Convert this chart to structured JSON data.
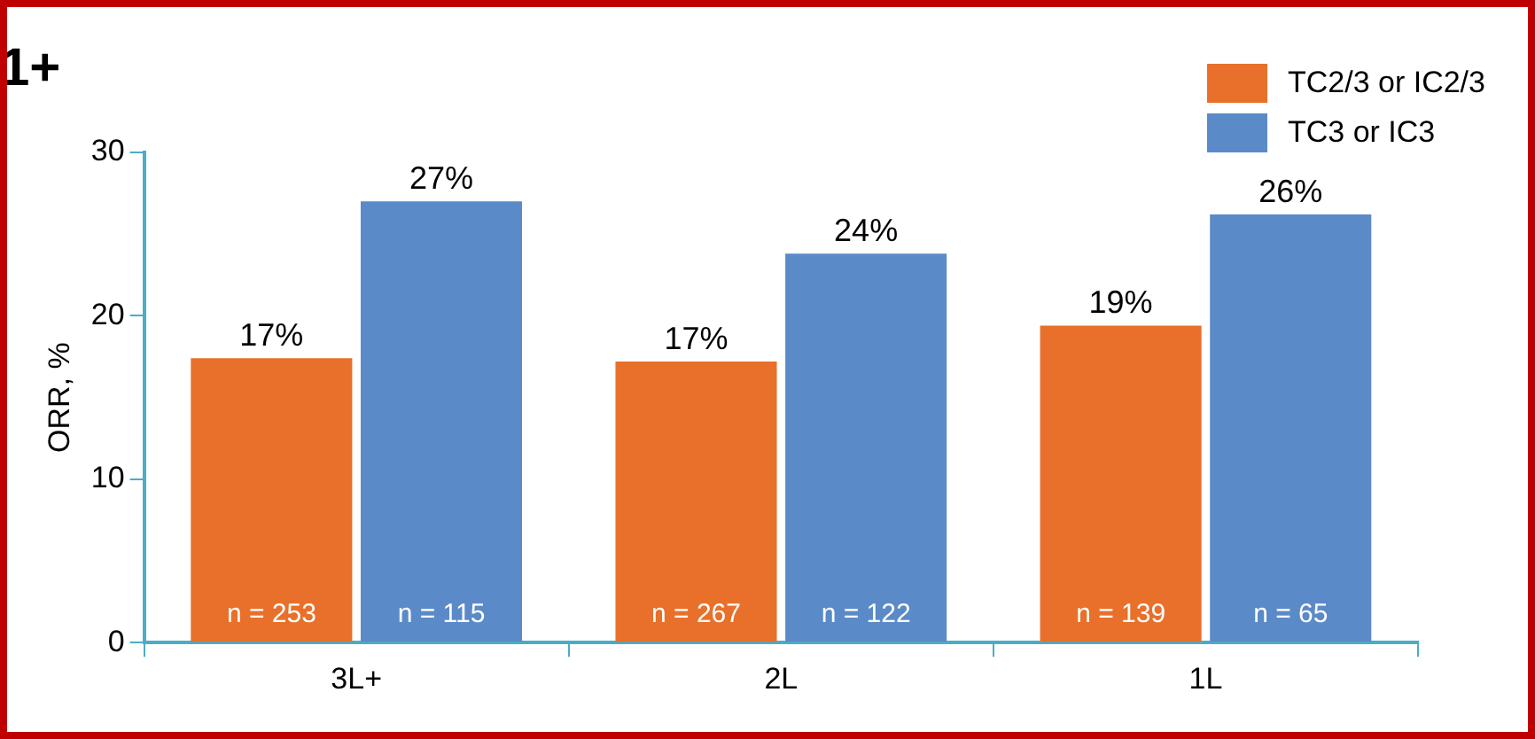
{
  "chart_data": {
    "type": "bar",
    "title": "1+",
    "ylabel": "ORR, %",
    "categories": [
      "3L+",
      "2L",
      "1L"
    ],
    "series": [
      {
        "name": "TC2/3 or IC2/3",
        "color": "#e8702a",
        "values": [
          17.4,
          17.2,
          19.4
        ],
        "value_labels": [
          "17%",
          "17%",
          "19%"
        ]
      },
      {
        "name": "TC3 or IC3",
        "color": "#5b8ac8",
        "values": [
          27,
          23.8,
          26.2
        ],
        "value_labels": [
          "27%",
          "24%",
          "26%"
        ]
      }
    ],
    "ylim": [
      0,
      30
    ],
    "yticks": [
      0,
      10,
      20,
      30
    ],
    "grid": false,
    "legend": "top right",
    "annotations": [
      {
        "text": "n = 253",
        "x": "3L+",
        "y": 0
      },
      {
        "text": "n = 115",
        "x": "3L+",
        "y": 0
      },
      {
        "text": "n = 267",
        "x": "2L",
        "y": 0
      },
      {
        "text": "n = 122",
        "x": "2L",
        "y": 0
      },
      {
        "text": "n = 139",
        "x": "1L",
        "y": 0
      },
      {
        "text": "n = 65",
        "x": "1L",
        "y": 0
      }
    ]
  }
}
